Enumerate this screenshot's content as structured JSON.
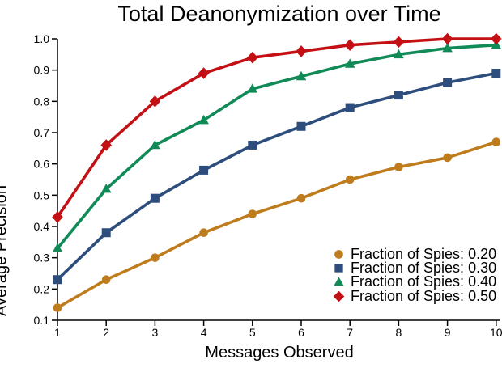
{
  "page": {
    "background": "#ffffff"
  },
  "chart_data": {
    "type": "line",
    "title": "Total Deanonymization over Time",
    "xlabel": "Messages Observed",
    "ylabel": "Average Precision",
    "xlim": [
      1,
      10
    ],
    "ylim": [
      0.1,
      1.0
    ],
    "x_ticks": [
      1,
      2,
      3,
      4,
      5,
      6,
      7,
      8,
      9,
      10
    ],
    "y_ticks": [
      0.1,
      0.2,
      0.3,
      0.4,
      0.5,
      0.6,
      0.7,
      0.8,
      0.9,
      1.0
    ],
    "grid": false,
    "legend_position": "lower right",
    "axis_color": "#000000",
    "x": [
      1,
      2,
      3,
      4,
      5,
      6,
      7,
      8,
      9,
      10
    ],
    "series": [
      {
        "name": "Fraction of Spies: 0.20",
        "marker": "circle",
        "color": "#BE7C1D",
        "values": [
          0.14,
          0.23,
          0.3,
          0.38,
          0.44,
          0.49,
          0.55,
          0.59,
          0.62,
          0.67
        ]
      },
      {
        "name": "Fraction of Spies: 0.30",
        "marker": "square",
        "color": "#2D4D7C",
        "values": [
          0.23,
          0.38,
          0.49,
          0.58,
          0.66,
          0.72,
          0.78,
          0.82,
          0.86,
          0.89
        ]
      },
      {
        "name": "Fraction of Spies: 0.40",
        "marker": "triangle",
        "color": "#108A56",
        "values": [
          0.33,
          0.52,
          0.66,
          0.74,
          0.84,
          0.88,
          0.92,
          0.95,
          0.97,
          0.98
        ]
      },
      {
        "name": "Fraction of Spies: 0.50",
        "marker": "diamond",
        "color": "#C31014",
        "values": [
          0.43,
          0.66,
          0.8,
          0.89,
          0.94,
          0.96,
          0.98,
          0.99,
          1.0,
          1.0
        ]
      }
    ]
  }
}
